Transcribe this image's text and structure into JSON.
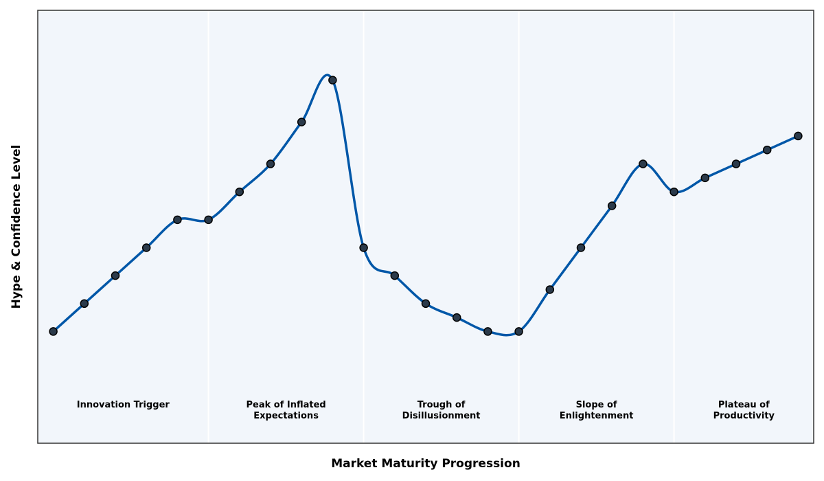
{
  "chart_data": {
    "type": "line",
    "xlabel": "Market Maturity Progression",
    "ylabel": "Hype & Confidence Level",
    "x": [
      0,
      1,
      2,
      3,
      4,
      5,
      6,
      7,
      8,
      9,
      10,
      11,
      12,
      13,
      14,
      15,
      16,
      17,
      18,
      19,
      20,
      21,
      22,
      23,
      24
    ],
    "series": [
      {
        "color": "#0057a8",
        "marker_color": "#2b3a4a",
        "values": [
          8,
          10,
          12,
          14,
          16,
          16,
          18,
          20,
          23,
          26,
          14,
          12,
          10,
          9,
          8,
          8,
          11,
          14,
          17,
          20,
          18,
          19,
          20,
          21,
          22
        ]
      }
    ],
    "xlim": [
      -0.5,
      24.5
    ],
    "ylim": [
      0,
      31
    ],
    "phase_boundaries": [
      5,
      10,
      15,
      20
    ],
    "phases": [
      "Innovation Trigger",
      "Peak of Inflated\nExpectations",
      "Trough of\nDisillusionment",
      "Slope of\nEnlightenment",
      "Plateau of\nProductivity"
    ]
  }
}
